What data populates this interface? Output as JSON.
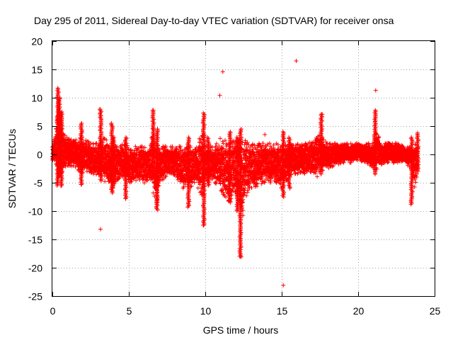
{
  "chart_data": {
    "type": "scatter",
    "title": "Day 295 of 2011, Sidereal Day-to-day VTEC variation (SDTVAR) for receiver onsa",
    "xlabel": "GPS time / hours",
    "ylabel": "SDTVAR / TECUs",
    "xlim": [
      0,
      25
    ],
    "ylim": [
      -25,
      20
    ],
    "x_ticks": [
      0,
      5,
      10,
      15,
      20,
      25
    ],
    "y_ticks": [
      -25,
      -20,
      -15,
      -10,
      -5,
      0,
      5,
      10,
      15,
      20
    ],
    "grid": true,
    "marker": "+",
    "series_color": "#ff0000",
    "band_profile": {
      "hours": [
        0,
        0.2,
        0.35,
        0.45,
        0.55,
        0.7,
        1.0,
        1.4,
        1.8,
        2.2,
        2.6,
        3.0,
        3.2,
        3.6,
        3.9,
        4.2,
        4.6,
        5.0,
        5.5,
        6.0,
        6.4,
        6.6,
        6.8,
        7.0,
        7.5,
        8.0,
        8.5,
        9.0,
        9.4,
        9.8,
        10.0,
        10.4,
        10.8,
        11.0,
        11.3,
        11.6,
        12.0,
        12.2,
        12.4,
        12.6,
        13.0,
        13.5,
        14.0,
        14.5,
        15.0,
        15.5,
        16.0,
        16.5,
        17.0,
        17.3,
        17.6,
        18.0,
        18.5,
        19.0,
        19.5,
        20.0,
        20.5,
        21.0,
        21.2,
        21.5,
        22.0,
        22.5,
        23.0,
        23.5,
        23.7,
        23.9
      ],
      "upper": [
        1.5,
        4.0,
        8.0,
        9.0,
        6.0,
        4.0,
        3.0,
        2.5,
        3.0,
        2.5,
        2.0,
        2.0,
        3.0,
        3.0,
        2.0,
        1.5,
        2.0,
        1.5,
        1.5,
        1.5,
        1.5,
        5.0,
        2.0,
        1.5,
        1.5,
        1.5,
        1.5,
        1.5,
        1.5,
        4.0,
        1.5,
        1.5,
        2.0,
        3.0,
        2.5,
        2.0,
        3.0,
        4.0,
        3.0,
        2.5,
        2.0,
        2.0,
        2.0,
        2.0,
        2.0,
        2.0,
        2.0,
        2.0,
        2.5,
        4.0,
        3.0,
        2.0,
        2.0,
        2.0,
        2.0,
        2.0,
        2.0,
        2.0,
        4.5,
        2.0,
        2.0,
        2.0,
        1.5,
        1.0,
        2.0,
        2.5
      ],
      "lower": [
        -1.0,
        -2.0,
        -3.0,
        -4.0,
        -3.5,
        -3.0,
        -2.5,
        -2.0,
        -3.5,
        -3.0,
        -3.5,
        -4.0,
        -5.0,
        -5.0,
        -5.0,
        -5.0,
        -4.0,
        -5.0,
        -5.0,
        -5.5,
        -5.0,
        -7.0,
        -9.0,
        -5.0,
        -4.0,
        -4.0,
        -6.0,
        -6.0,
        -5.0,
        -8.0,
        -5.0,
        -4.5,
        -5.5,
        -6.5,
        -7.5,
        -8.5,
        -7.0,
        -10.0,
        -12.0,
        -8.0,
        -6.0,
        -5.5,
        -5.0,
        -5.0,
        -6.0,
        -4.0,
        -3.5,
        -3.5,
        -3.5,
        -4.0,
        -3.0,
        -2.5,
        -2.0,
        -1.5,
        -1.5,
        -1.0,
        -1.5,
        -2.5,
        -3.0,
        -2.0,
        -1.5,
        -1.5,
        -1.5,
        -2.5,
        -6.0,
        -3.0
      ]
    },
    "spikes": [
      {
        "x": 0.35,
        "y_min": -5.5,
        "y_max": 11.7
      },
      {
        "x": 0.45,
        "y_min": -4.0,
        "y_max": 10.0
      },
      {
        "x": 0.6,
        "y_min": -5.5,
        "y_max": 7.5
      },
      {
        "x": 1.9,
        "y_min": -5.3,
        "y_max": 5.5
      },
      {
        "x": 3.15,
        "y_min": -4.0,
        "y_max": 8.0
      },
      {
        "x": 3.9,
        "y_min": -6.8,
        "y_max": 5.5
      },
      {
        "x": 4.0,
        "y_min": -6.0,
        "y_max": 3.0
      },
      {
        "x": 4.8,
        "y_min": -7.8,
        "y_max": 3.0
      },
      {
        "x": 6.6,
        "y_min": -4.0,
        "y_max": 7.8
      },
      {
        "x": 6.85,
        "y_min": -9.8,
        "y_max": 4.5
      },
      {
        "x": 8.9,
        "y_min": -9.3,
        "y_max": 3.0
      },
      {
        "x": 9.9,
        "y_min": -12.5,
        "y_max": 7.3
      },
      {
        "x": 10.2,
        "y_min": -5.5,
        "y_max": 3.0
      },
      {
        "x": 11.6,
        "y_min": -8.5,
        "y_max": 4.0
      },
      {
        "x": 12.1,
        "y_min": -10.0,
        "y_max": 3.0
      },
      {
        "x": 12.3,
        "y_min": -18.0,
        "y_max": 4.5
      },
      {
        "x": 15.1,
        "y_min": -7.5,
        "y_max": 4.0
      },
      {
        "x": 15.5,
        "y_min": -6.0,
        "y_max": 3.0
      },
      {
        "x": 17.6,
        "y_min": -3.5,
        "y_max": 7.1
      },
      {
        "x": 21.1,
        "y_min": -3.5,
        "y_max": 7.8
      },
      {
        "x": 23.5,
        "y_min": -8.8,
        "y_max": 3.0
      },
      {
        "x": 23.9,
        "y_min": -3.0,
        "y_max": 3.8
      }
    ],
    "outliers": [
      {
        "x": 3.15,
        "y": -13.2
      },
      {
        "x": 9.9,
        "y": -12.5
      },
      {
        "x": 10.95,
        "y": 10.4
      },
      {
        "x": 11.15,
        "y": 14.6
      },
      {
        "x": 12.25,
        "y": -18.0
      },
      {
        "x": 12.35,
        "y": -18.1
      },
      {
        "x": 15.1,
        "y": -23.1
      },
      {
        "x": 15.95,
        "y": 16.5
      },
      {
        "x": 21.15,
        "y": 11.3
      },
      {
        "x": 17.65,
        "y": 7.1
      },
      {
        "x": 6.6,
        "y": 7.8
      },
      {
        "x": 3.1,
        "y": 8.0
      },
      {
        "x": 13.9,
        "y": 3.5
      },
      {
        "x": 1.9,
        "y": -5.3
      },
      {
        "x": 0.6,
        "y": -5.5
      },
      {
        "x": 4.8,
        "y": -7.8
      }
    ]
  }
}
